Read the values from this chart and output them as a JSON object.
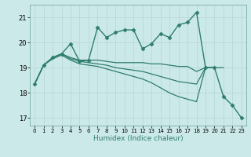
{
  "title": "",
  "xlabel": "Humidex (Indice chaleur)",
  "xlim": [
    -0.5,
    23.5
  ],
  "ylim": [
    16.7,
    21.5
  ],
  "yticks": [
    17,
    18,
    19,
    20,
    21
  ],
  "xticks": [
    0,
    1,
    2,
    3,
    4,
    5,
    6,
    7,
    8,
    9,
    10,
    11,
    12,
    13,
    14,
    15,
    16,
    17,
    18,
    19,
    20,
    21,
    22,
    23
  ],
  "background_color": "#cce9e9",
  "grid_color": "#b8d8d8",
  "line_color": "#2e7d6e",
  "series": [
    {
      "x": [
        0,
        1,
        2,
        3,
        4,
        5,
        6,
        7,
        8,
        9,
        10,
        11,
        12,
        13,
        14,
        15,
        16,
        17,
        18,
        19,
        20,
        21,
        22,
        23
      ],
      "y": [
        18.35,
        19.1,
        19.4,
        19.55,
        19.95,
        19.25,
        19.3,
        20.6,
        20.2,
        20.4,
        20.5,
        20.5,
        19.75,
        19.95,
        20.35,
        20.2,
        20.7,
        20.8,
        21.2,
        19.0,
        19.0,
        17.85,
        17.5,
        17.0
      ],
      "marker": "D",
      "markersize": 2.5,
      "linewidth": 1.0
    },
    {
      "x": [
        0,
        1,
        2,
        3,
        4,
        5,
        6,
        7,
        8,
        9,
        10,
        11,
        12,
        13,
        14,
        15,
        16,
        17,
        18,
        19,
        20,
        21,
        22,
        23
      ],
      "y": [
        18.35,
        19.1,
        19.4,
        19.55,
        19.4,
        19.3,
        19.3,
        19.3,
        19.25,
        19.2,
        19.2,
        19.2,
        19.2,
        19.15,
        19.15,
        19.1,
        19.05,
        19.05,
        18.85,
        19.0,
        19.0,
        19.0,
        null,
        null
      ],
      "marker": null,
      "markersize": 0,
      "linewidth": 0.9
    },
    {
      "x": [
        0,
        1,
        2,
        3,
        4,
        5,
        6,
        7,
        8,
        9,
        10,
        11,
        12,
        13,
        14,
        15,
        16,
        17,
        18,
        19,
        20,
        21,
        22,
        23
      ],
      "y": [
        18.35,
        19.1,
        19.4,
        19.55,
        19.35,
        19.25,
        19.2,
        19.15,
        19.1,
        19.0,
        18.95,
        18.9,
        18.85,
        18.75,
        18.65,
        18.55,
        18.45,
        18.4,
        18.35,
        19.0,
        19.0,
        null,
        null,
        null
      ],
      "marker": null,
      "markersize": 0,
      "linewidth": 0.9
    },
    {
      "x": [
        0,
        1,
        2,
        3,
        4,
        5,
        6,
        7,
        8,
        9,
        10,
        11,
        12,
        13,
        14,
        15,
        16,
        17,
        18,
        19,
        20,
        21,
        22,
        23
      ],
      "y": [
        18.35,
        19.1,
        19.35,
        19.5,
        19.3,
        19.15,
        19.1,
        19.05,
        18.95,
        18.85,
        18.75,
        18.65,
        18.55,
        18.4,
        18.2,
        18.0,
        17.85,
        17.75,
        17.65,
        19.0,
        null,
        null,
        null,
        null
      ],
      "marker": null,
      "markersize": 0,
      "linewidth": 0.9
    }
  ]
}
